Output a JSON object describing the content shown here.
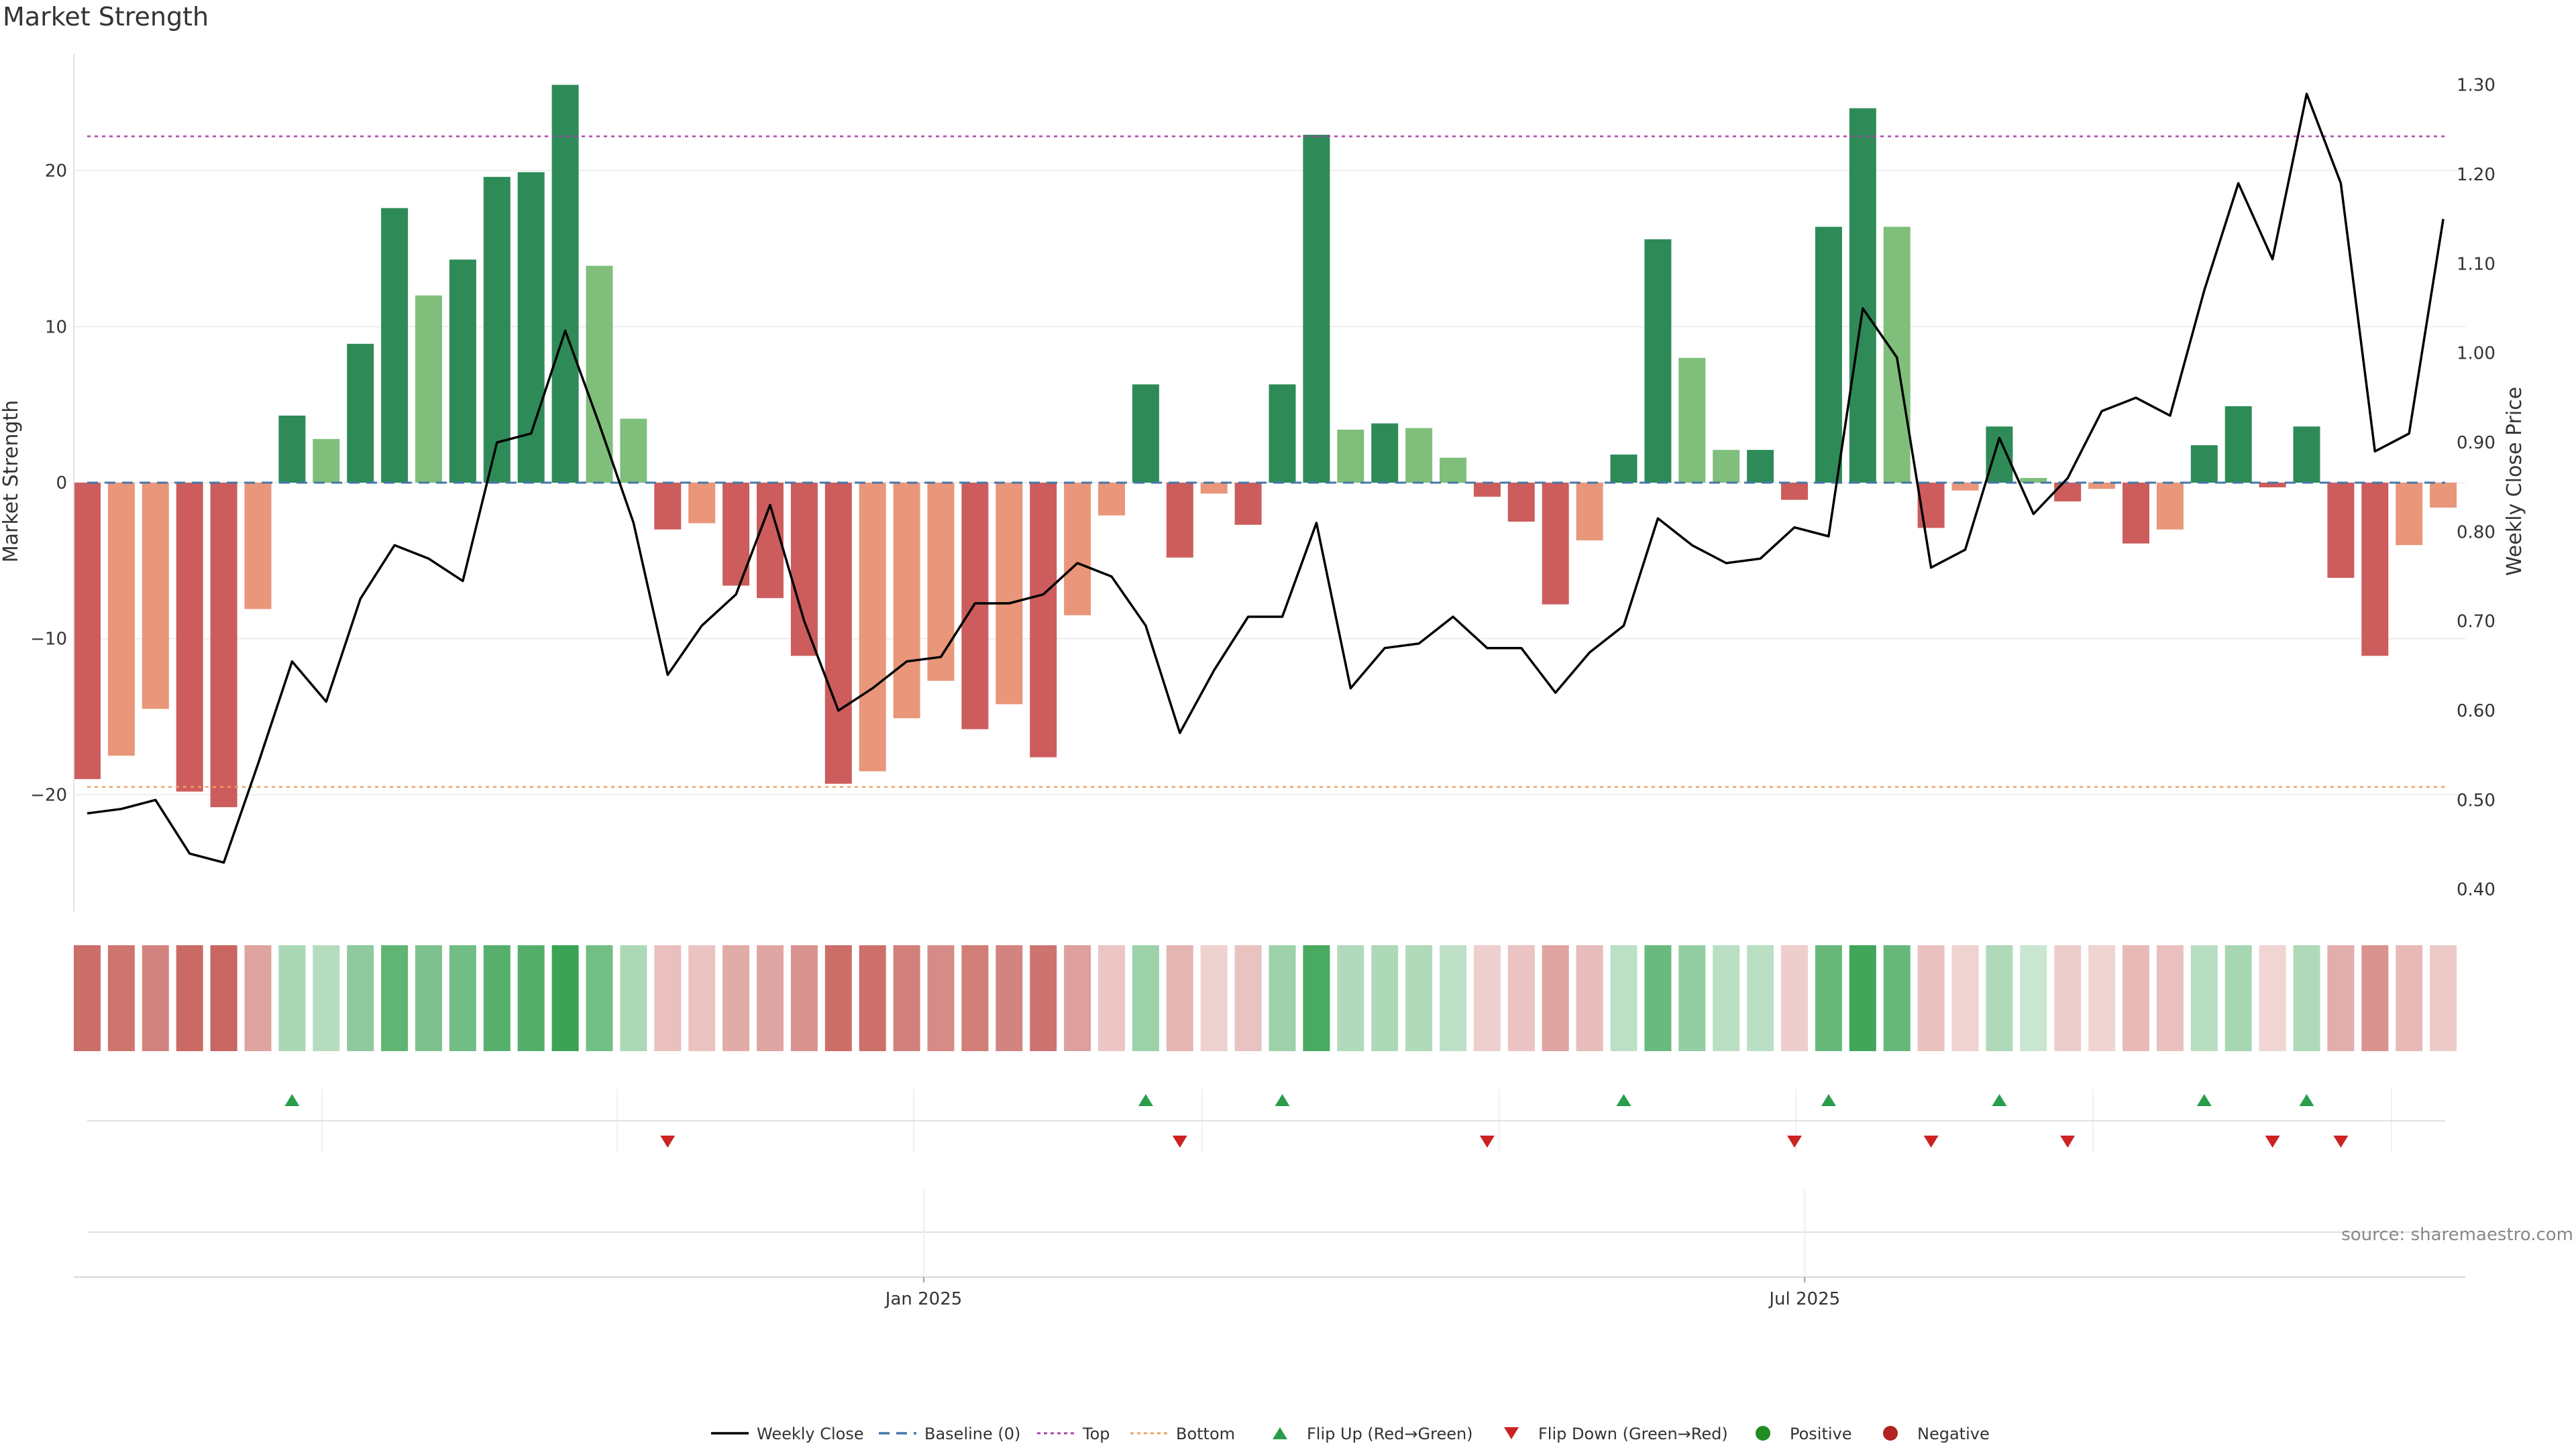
{
  "chart_data": {
    "type": "bar",
    "title": "Market Strength",
    "ylabel": "Market Strength",
    "y2label": "Weekly Close Price",
    "ylim": [
      -27.5,
      27.5
    ],
    "y2lim": [
      0.375,
      1.335
    ],
    "yticks": [
      -20,
      -10,
      0,
      10,
      20
    ],
    "y2ticks": [
      0.4,
      0.5,
      0.6,
      0.7,
      0.8,
      0.9,
      1.0,
      1.1,
      1.2,
      1.3
    ],
    "ytick_labels": [
      "−20",
      "−10",
      "0",
      "10",
      "20"
    ],
    "y2tick_labels": [
      "0.40",
      "0.50",
      "0.60",
      "0.70",
      "0.80",
      "0.90",
      "1.00",
      "1.10",
      "1.20",
      "1.30"
    ],
    "x_tick_labels": [
      {
        "index": 24.5,
        "label": "Jan 2025"
      },
      {
        "index": 50.3,
        "label": "Jul 2025"
      }
    ],
    "top_line": 22.2,
    "bottom_line": -19.5,
    "baseline": 0,
    "grid": true,
    "legend_position": "bottom",
    "colors": {
      "green_dark": "#2e8b57",
      "green_light": "#7fbf7b",
      "red_dark": "#cd5c5c",
      "red_light": "#e9967a",
      "close_line": "#000000",
      "baseline": "#4477aa",
      "top": "#aa44aa",
      "bottom": "#f0a060",
      "flip_up": "#2a9d4a",
      "flip_down": "#cc2222",
      "positive": "#228b22",
      "negative": "#b22222"
    },
    "series": [
      {
        "name": "Market Strength",
        "values": [
          -19,
          -17.5,
          -14.5,
          -19.8,
          -20.8,
          -8.1,
          4.3,
          2.8,
          8.9,
          17.6,
          12,
          14.3,
          19.6,
          19.9,
          25.5,
          13.9,
          4.1,
          -3,
          -2.6,
          -6.6,
          -7.4,
          -11.1,
          -19.3,
          -18.5,
          -15.1,
          -12.7,
          -15.8,
          -14.2,
          -17.6,
          -8.5,
          -2.1,
          6.3,
          -4.8,
          -0.7,
          -2.7,
          6.3,
          22.3,
          3.4,
          3.8,
          3.5,
          1.6,
          -0.9,
          -2.5,
          -7.8,
          -3.7,
          1.8,
          15.6,
          8,
          2.1,
          2.1,
          -1.1,
          16.4,
          24,
          16.4,
          -2.9,
          -0.5,
          3.6,
          0.3,
          -1.2,
          -0.4,
          -3.9,
          -3,
          2.4,
          4.9,
          -0.3,
          3.6,
          -6.1,
          -11.1,
          -4,
          -1.6
        ],
        "shade": [
          "d",
          "l",
          "l",
          "d",
          "d",
          "l",
          "d",
          "l",
          "d",
          "d",
          "l",
          "d",
          "d",
          "d",
          "d",
          "l",
          "l",
          "d",
          "l",
          "d",
          "d",
          "d",
          "d",
          "l",
          "l",
          "l",
          "d",
          "l",
          "d",
          "l",
          "l",
          "d",
          "d",
          "l",
          "d",
          "d",
          "d",
          "l",
          "d",
          "l",
          "l",
          "d",
          "d",
          "d",
          "l",
          "d",
          "d",
          "l",
          "l",
          "d",
          "d",
          "d",
          "d",
          "l",
          "d",
          "l",
          "d",
          "l",
          "d",
          "l",
          "d",
          "l",
          "d",
          "d",
          "d",
          "d",
          "d",
          "d",
          "l",
          "l"
        ]
      },
      {
        "name": "Weekly Close",
        "values": [
          0.485,
          0.49,
          0.5,
          0.44,
          0.43,
          0.54,
          0.655,
          0.61,
          0.725,
          0.785,
          0.77,
          0.745,
          0.9,
          0.91,
          1.025,
          0.92,
          0.81,
          0.64,
          0.695,
          0.73,
          0.83,
          0.7,
          0.6,
          0.625,
          0.655,
          0.66,
          0.72,
          0.72,
          0.73,
          0.765,
          0.75,
          0.695,
          0.575,
          0.645,
          0.705,
          0.705,
          0.81,
          0.625,
          0.67,
          0.675,
          0.705,
          0.67,
          0.67,
          0.62,
          0.665,
          0.695,
          0.815,
          0.785,
          0.765,
          0.77,
          0.805,
          0.795,
          1.05,
          0.995,
          0.76,
          0.78,
          0.905,
          0.82,
          0.86,
          0.935,
          0.95,
          0.93,
          1.07,
          1.19,
          1.105,
          1.29,
          1.19,
          0.89,
          0.91,
          1.15
        ]
      }
    ],
    "flip_up_indices": [
      6,
      31,
      35,
      45,
      51,
      56,
      62,
      65
    ],
    "flip_down_indices": [
      17,
      32,
      41,
      50,
      54,
      58,
      64,
      66
    ],
    "legend": [
      {
        "label": "Weekly Close",
        "kind": "line",
        "color": "#000000"
      },
      {
        "label": "Baseline (0)",
        "kind": "dash",
        "color": "#4477aa"
      },
      {
        "label": "Top",
        "kind": "dot",
        "color": "#aa44aa"
      },
      {
        "label": "Bottom",
        "kind": "dot",
        "color": "#f0a060"
      },
      {
        "label": "Flip Up (Red→Green)",
        "kind": "tri-up",
        "color": "#2a9d4a"
      },
      {
        "label": "Flip Down (Green→Red)",
        "kind": "tri-down",
        "color": "#cc2222"
      },
      {
        "label": "Positive",
        "kind": "circle",
        "color": "#228b22"
      },
      {
        "label": "Negative",
        "kind": "circle",
        "color": "#b22222"
      }
    ],
    "source": "source: sharemaestro.com"
  }
}
